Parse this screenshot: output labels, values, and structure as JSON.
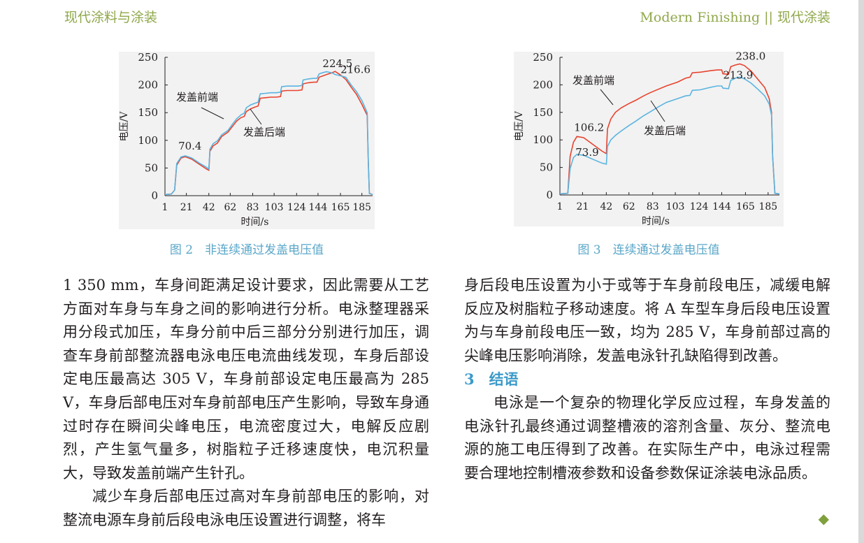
{
  "header": {
    "left": "现代涂料与涂装",
    "right": "Modern Finishing || 现代涂装"
  },
  "figures": {
    "fig2": {
      "caption": "图 2　非连续通过发盖电压值",
      "label_front": "发盖前端",
      "label_rear": "发盖后端"
    },
    "fig3": {
      "caption": "图 3　连续通过发盖电压值",
      "label_front": "发盖前端",
      "label_rear": "发盖后端"
    }
  },
  "chart_data": [
    {
      "type": "line",
      "title": "",
      "xlabel": "时间/s",
      "ylabel": "电压/V",
      "ylim": [
        0,
        250
      ],
      "xlim": [
        1,
        195
      ],
      "x_ticks": [
        "1",
        "21",
        "42",
        "62",
        "83",
        "103",
        "124",
        "144",
        "165",
        "185"
      ],
      "y_ticks": [
        "0",
        "50",
        "100",
        "150",
        "200",
        "250"
      ],
      "annotations": [
        "70.4",
        "224.5",
        "216.6"
      ],
      "colors": {
        "发盖前端": "#e8432e",
        "发盖后端": "#5ab4e0"
      },
      "series": [
        {
          "name": "发盖前端",
          "points": [
            [
              1,
              2
            ],
            [
              7,
              3
            ],
            [
              10,
              10
            ],
            [
              12,
              55
            ],
            [
              16,
              68
            ],
            [
              20,
              70.4
            ],
            [
              26,
              66
            ],
            [
              33,
              57
            ],
            [
              40,
              48
            ],
            [
              42,
              46
            ],
            [
              43,
              80
            ],
            [
              46,
              90
            ],
            [
              50,
              95
            ],
            [
              54,
              107
            ],
            [
              60,
              115
            ],
            [
              64,
              125
            ],
            [
              68,
              135
            ],
            [
              72,
              141
            ],
            [
              75,
              143
            ],
            [
              77,
              152
            ],
            [
              81,
              157
            ],
            [
              85,
              160
            ],
            [
              88,
              162
            ],
            [
              90,
              176
            ],
            [
              95,
              177
            ],
            [
              100,
              178
            ],
            [
              105,
              178
            ],
            [
              109,
              179
            ],
            [
              110,
              189
            ],
            [
              115,
              190
            ],
            [
              120,
              190
            ],
            [
              125,
              190
            ],
            [
              129,
              191
            ],
            [
              130,
              202
            ],
            [
              135,
              204
            ],
            [
              140,
              205
            ],
            [
              143,
              205
            ],
            [
              145,
              214
            ],
            [
              148,
              216
            ],
            [
              152,
              219
            ],
            [
              157,
              222
            ],
            [
              160,
              224.5
            ],
            [
              165,
              218
            ],
            [
              170,
              210
            ],
            [
              175,
              196
            ],
            [
              180,
              183
            ],
            [
              185,
              165
            ],
            [
              190,
              145
            ],
            [
              191,
              60
            ],
            [
              192,
              4
            ],
            [
              195,
              2
            ]
          ]
        },
        {
          "name": "发盖后端",
          "points": [
            [
              1,
              2
            ],
            [
              7,
              3
            ],
            [
              10,
              10
            ],
            [
              12,
              58
            ],
            [
              16,
              70
            ],
            [
              20,
              72
            ],
            [
              26,
              68
            ],
            [
              33,
              59
            ],
            [
              40,
              51
            ],
            [
              42,
              48
            ],
            [
              43,
              84
            ],
            [
              46,
              94
            ],
            [
              50,
              99
            ],
            [
              54,
              110
            ],
            [
              60,
              118
            ],
            [
              64,
              129
            ],
            [
              68,
              139
            ],
            [
              72,
              146
            ],
            [
              75,
              149
            ],
            [
              77,
              159
            ],
            [
              81,
              164
            ],
            [
              85,
              167
            ],
            [
              88,
              169
            ],
            [
              90,
              184
            ],
            [
              95,
              185
            ],
            [
              100,
              186
            ],
            [
              105,
              186
            ],
            [
              109,
              187
            ],
            [
              110,
              197
            ],
            [
              115,
              198
            ],
            [
              120,
              198
            ],
            [
              125,
              198
            ],
            [
              129,
              199
            ],
            [
              130,
              209
            ],
            [
              135,
              211
            ],
            [
              140,
              212
            ],
            [
              143,
              212
            ],
            [
              145,
              220
            ],
            [
              148,
              222
            ],
            [
              152,
              224
            ],
            [
              157,
              222
            ],
            [
              160,
              219
            ],
            [
              165,
              216.6
            ],
            [
              170,
              214
            ],
            [
              175,
              200
            ],
            [
              180,
              188
            ],
            [
              185,
              172
            ],
            [
              190,
              150
            ],
            [
              191,
              60
            ],
            [
              192,
              4
            ],
            [
              195,
              2
            ]
          ]
        }
      ]
    },
    {
      "type": "line",
      "title": "",
      "xlabel": "时间/s",
      "ylabel": "电压/V",
      "ylim": [
        0,
        250
      ],
      "xlim": [
        1,
        195
      ],
      "x_ticks": [
        "1",
        "21",
        "42",
        "62",
        "83",
        "103",
        "124",
        "144",
        "165",
        "185"
      ],
      "y_ticks": [
        "0",
        "50",
        "100",
        "150",
        "200",
        "250"
      ],
      "annotations": [
        "238.0",
        "213.9",
        "106.2",
        "73.9"
      ],
      "colors": {
        "发盖前端": "#e8432e",
        "发盖后端": "#5ab4e0"
      },
      "series": [
        {
          "name": "发盖前端",
          "points": [
            [
              1,
              2
            ],
            [
              8,
              3
            ],
            [
              10,
              70
            ],
            [
              13,
              96
            ],
            [
              16,
              106.2
            ],
            [
              22,
              104
            ],
            [
              30,
              92
            ],
            [
              38,
              80
            ],
            [
              42,
              75
            ],
            [
              43,
              120
            ],
            [
              46,
              138
            ],
            [
              50,
              150
            ],
            [
              55,
              158
            ],
            [
              62,
              166
            ],
            [
              68,
              172
            ],
            [
              75,
              180
            ],
            [
              80,
              185
            ],
            [
              88,
              192
            ],
            [
              95,
              198
            ],
            [
              105,
              205
            ],
            [
              112,
              212
            ],
            [
              116,
              214
            ],
            [
              118,
              222
            ],
            [
              125,
              223
            ],
            [
              135,
              226
            ],
            [
              140,
              227
            ],
            [
              144,
              227
            ],
            [
              145,
              220
            ],
            [
              150,
              219
            ],
            [
              152,
              233
            ],
            [
              156,
              236
            ],
            [
              160,
              238.0
            ],
            [
              164,
              235
            ],
            [
              170,
              225
            ],
            [
              176,
              210
            ],
            [
              182,
              195
            ],
            [
              186,
              175
            ],
            [
              188,
              150
            ],
            [
              189,
              70
            ],
            [
              191,
              3
            ],
            [
              195,
              2
            ]
          ]
        },
        {
          "name": "发盖后端",
          "points": [
            [
              1,
              2
            ],
            [
              8,
              3
            ],
            [
              10,
              48
            ],
            [
              13,
              68
            ],
            [
              16,
              73.9
            ],
            [
              22,
              72
            ],
            [
              30,
              65
            ],
            [
              38,
              58
            ],
            [
              42,
              56
            ],
            [
              43,
              88
            ],
            [
              46,
              100
            ],
            [
              50,
              108
            ],
            [
              55,
              116
            ],
            [
              62,
              126
            ],
            [
              68,
              134
            ],
            [
              75,
              144
            ],
            [
              80,
              150
            ],
            [
              88,
              160
            ],
            [
              95,
              168
            ],
            [
              105,
              175
            ],
            [
              112,
              180
            ],
            [
              116,
              181
            ],
            [
              118,
              190
            ],
            [
              125,
              191
            ],
            [
              135,
              196
            ],
            [
              140,
              198
            ],
            [
              144,
              198
            ],
            [
              145,
              194
            ],
            [
              150,
              193
            ],
            [
              152,
              208
            ],
            [
              156,
              212
            ],
            [
              160,
              213.9
            ],
            [
              164,
              211
            ],
            [
              170,
              203
            ],
            [
              176,
              192
            ],
            [
              182,
              180
            ],
            [
              186,
              165
            ],
            [
              188,
              145
            ],
            [
              189,
              70
            ],
            [
              191,
              3
            ],
            [
              195,
              2
            ]
          ]
        }
      ]
    }
  ],
  "left_column": {
    "p1": "1 350 mm，车身间距满足设计要求，因此需要从工艺方面对车身与车身之间的影响进行分析。电泳整理器采用分段式加压，车身分前中后三部分分别进行加压，调查车身前部整流器电泳电压电流曲线发现，车身后部设定电压最高达 305 V，车身前部设定电压最高为 285 V，车身后部电压对车身前部电压产生影响，导致车身通过时存在瞬间尖峰电压，电流密度过大，电解反应剧烈，产生氢气量多，树脂粒子迁移速度快，电沉积量大，导致发盖前端产生针孔。",
    "p2": "减少车身后部电压过高对车身前部电压的影响，对整流电源车身前后段电泳电压设置进行调整，将车"
  },
  "right_column": {
    "p1": "身后段电压设置为小于或等于车身前段电压，减缓电解反应及树脂粒子移动速度。将 A 车型车身后段电压设置为与车身前段电压一致，均为 285 V，车身前部过高的尖峰电压影响消除，发盖电泳针孔缺陷得到改善。",
    "section_title": "3　结语",
    "p2": "电泳是一个复杂的物理化学反应过程，车身发盖的电泳针孔最终通过调整槽液的溶剂含量、灰分、整流电源的施工电压得到了改善。在实际生产中，电泳过程需要合理地控制槽液参数和设备参数保证涂装电泳品质。",
    "end_mark": "◆"
  }
}
